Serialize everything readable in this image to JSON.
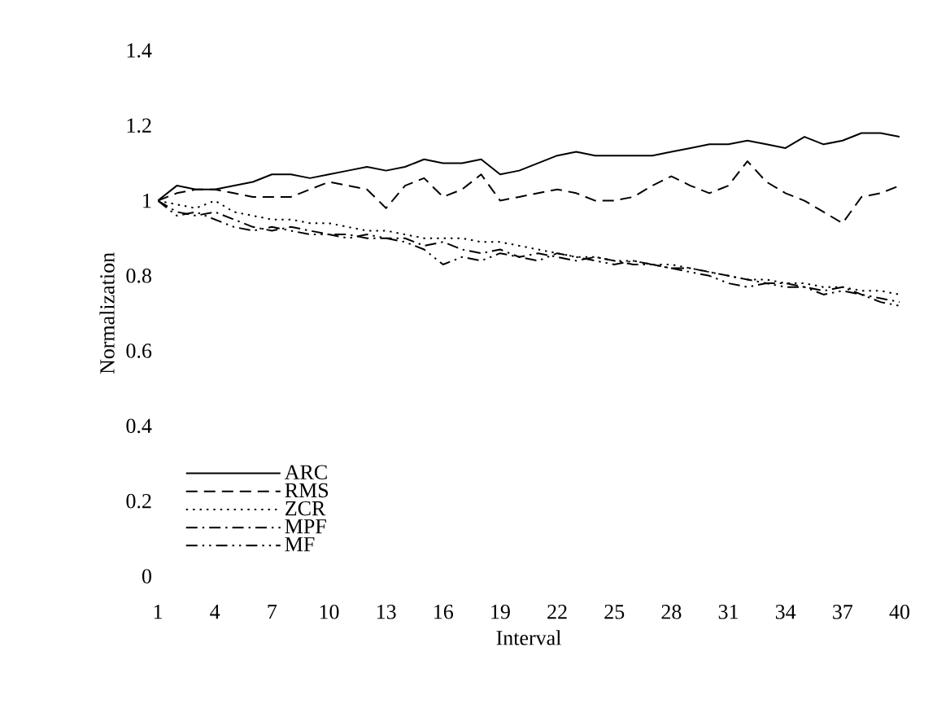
{
  "chart_data": {
    "type": "line",
    "xlabel": "Interval",
    "ylabel": "Normalization",
    "categories": [
      "1",
      null,
      null,
      "4",
      null,
      null,
      "7",
      null,
      null,
      "10",
      null,
      null,
      "13",
      null,
      null,
      "16",
      null,
      null,
      "19",
      null,
      null,
      "22",
      null,
      null,
      "25",
      null,
      null,
      "28",
      null,
      null,
      "31",
      null,
      null,
      "34",
      null,
      null,
      "37",
      null,
      null,
      "40"
    ],
    "ylim": [
      0,
      1.4
    ],
    "yticks": [
      0,
      0.2,
      0.4,
      0.6,
      0.8,
      1,
      1.2,
      1.4
    ],
    "grid": false,
    "legend": "bottom left",
    "marker": "none",
    "series": [
      {
        "name": "ARC",
        "color": "#000000",
        "line_style": "solid",
        "values": [
          1.0,
          1.04,
          1.03,
          1.03,
          1.04,
          1.05,
          1.07,
          1.07,
          1.06,
          1.07,
          1.08,
          1.09,
          1.08,
          1.09,
          1.11,
          1.1,
          1.1,
          1.11,
          1.07,
          1.08,
          1.1,
          1.12,
          1.13,
          1.12,
          1.12,
          1.12,
          1.12,
          1.13,
          1.14,
          1.15,
          1.15,
          1.16,
          1.15,
          1.14,
          1.17,
          1.15,
          1.16,
          1.18,
          1.18,
          1.17
        ]
      },
      {
        "name": "RMS",
        "color": "#000000",
        "line_style": "dashed",
        "values": [
          1.0,
          1.02,
          1.03,
          1.03,
          1.02,
          1.01,
          1.01,
          1.01,
          1.03,
          1.05,
          1.04,
          1.03,
          0.98,
          1.04,
          1.06,
          1.01,
          1.03,
          1.07,
          1.0,
          1.01,
          1.02,
          1.03,
          1.02,
          1.0,
          1.0,
          1.01,
          1.04,
          1.065,
          1.04,
          1.02,
          1.04,
          1.105,
          1.05,
          1.02,
          1.0,
          0.97,
          0.94,
          1.01,
          1.02,
          1.04
        ]
      },
      {
        "name": "ZCR",
        "color": "#000000",
        "line_style": "dotted",
        "values": [
          1.0,
          0.99,
          0.98,
          1.0,
          0.97,
          0.96,
          0.95,
          0.95,
          0.94,
          0.94,
          0.93,
          0.92,
          0.92,
          0.91,
          0.9,
          0.9,
          0.9,
          0.89,
          0.89,
          0.88,
          0.87,
          0.86,
          0.85,
          0.85,
          0.84,
          0.84,
          0.83,
          0.83,
          0.82,
          0.81,
          0.8,
          0.79,
          0.79,
          0.78,
          0.78,
          0.77,
          0.77,
          0.76,
          0.76,
          0.75
        ]
      },
      {
        "name": "MPF",
        "color": "#000000",
        "line_style": "dashdot",
        "values": [
          1.0,
          0.97,
          0.96,
          0.97,
          0.95,
          0.93,
          0.92,
          0.93,
          0.92,
          0.91,
          0.91,
          0.9,
          0.9,
          0.9,
          0.88,
          0.89,
          0.87,
          0.86,
          0.87,
          0.85,
          0.86,
          0.85,
          0.84,
          0.85,
          0.84,
          0.83,
          0.83,
          0.82,
          0.82,
          0.81,
          0.8,
          0.79,
          0.78,
          0.78,
          0.77,
          0.76,
          0.77,
          0.75,
          0.74,
          0.73
        ]
      },
      {
        "name": "MF",
        "color": "#000000",
        "line_style": "dashdotdot",
        "values": [
          1.0,
          0.96,
          0.97,
          0.95,
          0.93,
          0.92,
          0.93,
          0.92,
          0.91,
          0.91,
          0.9,
          0.91,
          0.9,
          0.89,
          0.87,
          0.83,
          0.85,
          0.84,
          0.86,
          0.85,
          0.84,
          0.86,
          0.85,
          0.84,
          0.83,
          0.84,
          0.83,
          0.82,
          0.81,
          0.8,
          0.78,
          0.77,
          0.78,
          0.77,
          0.77,
          0.75,
          0.76,
          0.75,
          0.73,
          0.72
        ]
      }
    ]
  }
}
